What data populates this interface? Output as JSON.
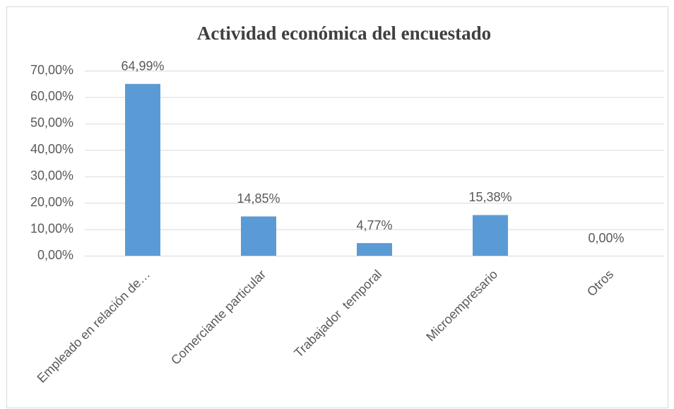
{
  "chart_data": {
    "type": "bar",
    "title": "Actividad económica del encuestado",
    "categories": [
      "Empleado en relación de…",
      "Comerciante particular",
      "Trabajador  temporal",
      "Microempresario",
      "Otros"
    ],
    "values": [
      64.99,
      14.85,
      4.77,
      15.38,
      0
    ],
    "value_labels": [
      "64,99%",
      "14,85%",
      "4,77%",
      "15,38%",
      "0,00%"
    ],
    "color": "#5b9bd5",
    "ylim": [
      0,
      70
    ],
    "yticks": [
      {
        "value": 0,
        "label": "0,00%"
      },
      {
        "value": 10,
        "label": "10,00%"
      },
      {
        "value": 20,
        "label": "20,00%"
      },
      {
        "value": 30,
        "label": "30,00%"
      },
      {
        "value": 40,
        "label": "40,00%"
      },
      {
        "value": 50,
        "label": "50,00%"
      },
      {
        "value": 60,
        "label": "60,00%"
      },
      {
        "value": 70,
        "label": "70,00%"
      }
    ],
    "grid": true
  }
}
